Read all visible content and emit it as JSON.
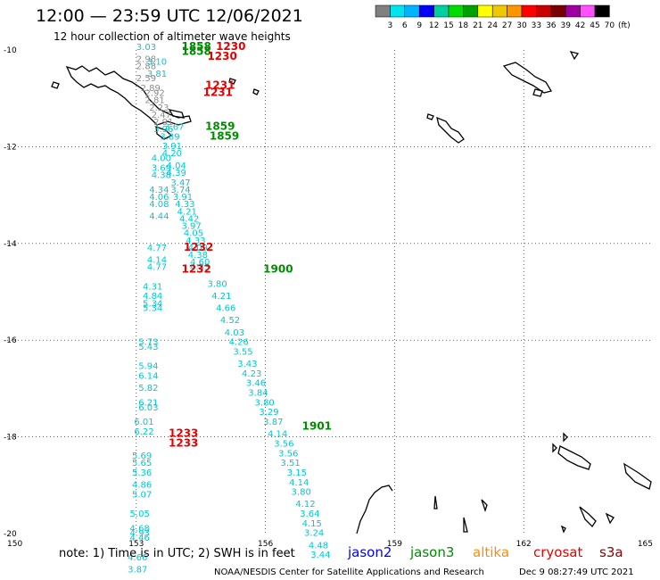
{
  "header": {
    "title": "12:00 — 23:59 UTC 12/06/2021",
    "subtitle": "12 hour collection of altimeter wave heights"
  },
  "color_scale": {
    "labels": [
      "3",
      "6",
      "9",
      "12",
      "15",
      "18",
      "21",
      "24",
      "27",
      "30",
      "33",
      "36",
      "39",
      "42",
      "45",
      "70",
      "(ft)"
    ],
    "colors": [
      "#808080",
      "#00e4f0",
      "#00b4ff",
      "#0000ff",
      "#00d0a0",
      "#00dc00",
      "#00a000",
      "#ffff00",
      "#f0c800",
      "#ff9600",
      "#ff0000",
      "#c80000",
      "#780000",
      "#a000a0",
      "#ff50ff",
      "#000000"
    ]
  },
  "footer": {
    "note": "note: 1) Time is in UTC; 2) SWH is in feet",
    "credit": "NOAA/NESDIS Center for Satellite Applications and Research",
    "timestamp": "Dec  9 08:27:49 UTC 2021",
    "legend": [
      {
        "name": "jason2",
        "color": "#0000ff"
      },
      {
        "name": "jason3",
        "color": "#008c00"
      },
      {
        "name": "altika",
        "color": "#ff8c00"
      },
      {
        "name": "cryosat",
        "color": "#e60000"
      },
      {
        "name": "s3a",
        "color": "#8b0000"
      }
    ]
  },
  "chart_data": {
    "type": "scatter",
    "xlim": [
      150,
      165
    ],
    "ylim": [
      -20,
      -10
    ],
    "x_ticks": [
      150,
      153,
      156,
      159,
      162,
      165
    ],
    "x_tick_labels": [
      "150",
      "153",
      "156",
      "159",
      "162",
      "165"
    ],
    "y_ticks": [
      -10,
      -12,
      -14,
      -16,
      -18,
      -20
    ],
    "y_tick_labels": [
      "-10",
      "-12",
      "-14",
      "-16",
      "-18",
      "-20"
    ],
    "grid": true,
    "series": [
      {
        "color": "#00c8d2",
        "points": [
          {
            "lon": 153.35,
            "lat": -12.3,
            "label": "4.00"
          },
          {
            "lon": 153.35,
            "lat": -12.5,
            "label": "3.69"
          },
          {
            "lon": 153.35,
            "lat": -12.65,
            "label": "4.38"
          },
          {
            "lon": 153.3,
            "lat": -12.95,
            "label": "4.34"
          },
          {
            "lon": 153.3,
            "lat": -13.1,
            "label": "4.06"
          },
          {
            "lon": 153.3,
            "lat": -13.25,
            "label": "4.08"
          },
          {
            "lon": 153.3,
            "lat": -13.5,
            "label": "4.44"
          },
          {
            "lon": 153.25,
            "lat": -14.15,
            "label": "4.77"
          },
          {
            "lon": 153.25,
            "lat": -14.4,
            "label": "4.14"
          },
          {
            "lon": 153.25,
            "lat": -14.55,
            "label": "4.77"
          },
          {
            "lon": 153.15,
            "lat": -14.95,
            "label": "4.31"
          },
          {
            "lon": 153.15,
            "lat": -15.15,
            "label": "4.84"
          },
          {
            "lon": 153.15,
            "lat": -15.3,
            "label": "5.34"
          },
          {
            "lon": 153.15,
            "lat": -15.4,
            "label": "5.34"
          },
          {
            "lon": 153.05,
            "lat": -16.1,
            "label": "5.73"
          },
          {
            "lon": 153.05,
            "lat": -16.2,
            "label": "5.43"
          },
          {
            "lon": 153.05,
            "lat": -16.6,
            "label": "5.94"
          },
          {
            "lon": 153.05,
            "lat": -16.8,
            "label": "6.14"
          },
          {
            "lon": 153.05,
            "lat": -17.05,
            "label": "5.82"
          },
          {
            "lon": 153.05,
            "lat": -17.35,
            "label": "6.21"
          },
          {
            "lon": 153.05,
            "lat": -17.45,
            "label": "6.03"
          },
          {
            "lon": 152.95,
            "lat": -17.75,
            "label": "6.01"
          },
          {
            "lon": 152.95,
            "lat": -17.95,
            "label": "6.22"
          },
          {
            "lon": 152.9,
            "lat": -18.45,
            "label": "5.69"
          },
          {
            "lon": 152.9,
            "lat": -18.6,
            "label": "5.65"
          },
          {
            "lon": 152.9,
            "lat": -18.8,
            "label": "5.36"
          },
          {
            "lon": 152.9,
            "lat": -19.05,
            "label": "4.86"
          },
          {
            "lon": 152.9,
            "lat": -19.25,
            "label": "5.07"
          },
          {
            "lon": 152.85,
            "lat": -19.65,
            "label": "5.05"
          },
          {
            "lon": 152.85,
            "lat": -19.95,
            "label": "4.68"
          },
          {
            "lon": 152.85,
            "lat": -20.05,
            "label": "4.93"
          },
          {
            "lon": 152.85,
            "lat": -20.15,
            "label": "4.46"
          },
          {
            "lon": 152.8,
            "lat": -20.55,
            "label": "4.66"
          },
          {
            "lon": 152.8,
            "lat": -20.8,
            "label": "3.87"
          },
          {
            "lon": 153.0,
            "lat": -10.0,
            "label": "3.03"
          },
          {
            "lon": 153.25,
            "lat": -10.3,
            "label": "3.10"
          },
          {
            "lon": 153.25,
            "lat": -10.55,
            "label": "3.81"
          },
          {
            "lon": 153.4,
            "lat": -11.7,
            "label": "3.96"
          },
          {
            "lon": 153.65,
            "lat": -11.65,
            "label": "3.67"
          },
          {
            "lon": 153.55,
            "lat": -11.85,
            "label": "3.89"
          },
          {
            "lon": 153.6,
            "lat": -12.05,
            "label": "3.91"
          },
          {
            "lon": 153.6,
            "lat": -12.2,
            "label": "4.20"
          },
          {
            "lon": 153.7,
            "lat": -12.45,
            "label": "4.04"
          },
          {
            "lon": 153.7,
            "lat": -12.6,
            "label": "4.39"
          },
          {
            "lon": 153.8,
            "lat": -12.8,
            "label": "3.47"
          },
          {
            "lon": 153.8,
            "lat": -12.95,
            "label": "3.74"
          },
          {
            "lon": 153.85,
            "lat": -13.1,
            "label": "3.91"
          },
          {
            "lon": 153.9,
            "lat": -13.25,
            "label": "4.33"
          },
          {
            "lon": 153.95,
            "lat": -13.4,
            "label": "4.21"
          },
          {
            "lon": 154.0,
            "lat": -13.55,
            "label": "4.42"
          },
          {
            "lon": 154.05,
            "lat": -13.7,
            "label": "3.97"
          },
          {
            "lon": 154.1,
            "lat": -13.85,
            "label": "4.05"
          },
          {
            "lon": 154.15,
            "lat": -14.0,
            "label": "4.33"
          },
          {
            "lon": 154.2,
            "lat": -14.15,
            "label": "4.09"
          },
          {
            "lon": 154.2,
            "lat": -14.3,
            "label": "4.38"
          },
          {
            "lon": 154.25,
            "lat": -14.45,
            "label": "4.60"
          },
          {
            "lon": 154.25,
            "lat": -14.55,
            "label": "4.33"
          },
          {
            "lon": 154.65,
            "lat": -14.9,
            "label": "3.80"
          },
          {
            "lon": 154.75,
            "lat": -15.15,
            "label": "4.21"
          },
          {
            "lon": 154.85,
            "lat": -15.4,
            "label": "4.66"
          },
          {
            "lon": 154.95,
            "lat": -15.65,
            "label": "4.52"
          },
          {
            "lon": 155.05,
            "lat": -15.9,
            "label": "4.03"
          },
          {
            "lon": 155.15,
            "lat": -16.1,
            "label": "4.26"
          },
          {
            "lon": 155.25,
            "lat": -16.3,
            "label": "3.55"
          },
          {
            "lon": 155.35,
            "lat": -16.55,
            "label": "3.43"
          },
          {
            "lon": 155.45,
            "lat": -16.75,
            "label": "4.23"
          },
          {
            "lon": 155.55,
            "lat": -16.95,
            "label": "3.46"
          },
          {
            "lon": 155.6,
            "lat": -17.15,
            "label": "3.84"
          },
          {
            "lon": 155.75,
            "lat": -17.35,
            "label": "3.80"
          },
          {
            "lon": 155.85,
            "lat": -17.55,
            "label": "3.29"
          },
          {
            "lon": 155.95,
            "lat": -17.75,
            "label": "3.87"
          },
          {
            "lon": 156.05,
            "lat": -18.0,
            "label": "4.14"
          },
          {
            "lon": 156.2,
            "lat": -18.2,
            "label": "3.56"
          },
          {
            "lon": 156.3,
            "lat": -18.4,
            "label": "3.56"
          },
          {
            "lon": 156.35,
            "lat": -18.6,
            "label": "3.51"
          },
          {
            "lon": 156.5,
            "lat": -18.8,
            "label": "3.15"
          },
          {
            "lon": 156.55,
            "lat": -19.0,
            "label": "4.14"
          },
          {
            "lon": 156.6,
            "lat": -19.2,
            "label": "3.80"
          },
          {
            "lon": 156.7,
            "lat": -19.45,
            "label": "4.12"
          },
          {
            "lon": 156.8,
            "lat": -19.65,
            "label": "3.64"
          },
          {
            "lon": 156.85,
            "lat": -19.85,
            "label": "4.15"
          },
          {
            "lon": 156.9,
            "lat": -20.05,
            "label": "3.24"
          },
          {
            "lon": 157.0,
            "lat": -20.3,
            "label": "4.48"
          },
          {
            "lon": 157.05,
            "lat": -20.5,
            "label": "3.44"
          }
        ]
      },
      {
        "color": "#8c8c8c",
        "points": [
          {
            "lon": 153.0,
            "lat": -10.25,
            "label": "2.98"
          },
          {
            "lon": 153.0,
            "lat": -10.4,
            "label": "2.88"
          },
          {
            "lon": 153.0,
            "lat": -10.65,
            "label": "2.59"
          },
          {
            "lon": 153.1,
            "lat": -10.85,
            "label": "2.89"
          },
          {
            "lon": 153.2,
            "lat": -10.95,
            "label": "2.92"
          },
          {
            "lon": 153.2,
            "lat": -11.1,
            "label": "2.81"
          },
          {
            "lon": 153.3,
            "lat": -11.25,
            "label": "2.23"
          },
          {
            "lon": 153.35,
            "lat": -11.4,
            "label": "2.47"
          },
          {
            "lon": 153.4,
            "lat": -11.55,
            "label": "2.91"
          }
        ]
      }
    ],
    "time_labels": [
      {
        "lon": 154.05,
        "lat": -10.0,
        "label": "1858",
        "color": "#008c00"
      },
      {
        "lon": 154.05,
        "lat": -10.1,
        "label": "1858",
        "color": "#008c00"
      },
      {
        "lon": 154.85,
        "lat": -10.0,
        "label": "1230",
        "color": "#e60000"
      },
      {
        "lon": 154.65,
        "lat": -10.2,
        "label": "1230",
        "color": "#e60000"
      },
      {
        "lon": 154.6,
        "lat": -10.8,
        "label": "1231",
        "color": "#e60000"
      },
      {
        "lon": 154.55,
        "lat": -10.95,
        "label": "1231",
        "color": "#e60000"
      },
      {
        "lon": 154.6,
        "lat": -11.65,
        "label": "1859",
        "color": "#008c00"
      },
      {
        "lon": 154.7,
        "lat": -11.85,
        "label": "1859",
        "color": "#008c00"
      },
      {
        "lon": 154.1,
        "lat": -14.15,
        "label": "1232",
        "color": "#e60000"
      },
      {
        "lon": 154.05,
        "lat": -14.6,
        "label": "1232",
        "color": "#e60000"
      },
      {
        "lon": 155.95,
        "lat": -14.6,
        "label": "1900",
        "color": "#008c00"
      },
      {
        "lon": 156.85,
        "lat": -17.85,
        "label": "1901",
        "color": "#008c00"
      },
      {
        "lon": 153.75,
        "lat": -18.0,
        "label": "1233",
        "color": "#e60000"
      },
      {
        "lon": 153.75,
        "lat": -18.2,
        "label": "1233",
        "color": "#e60000"
      }
    ]
  }
}
